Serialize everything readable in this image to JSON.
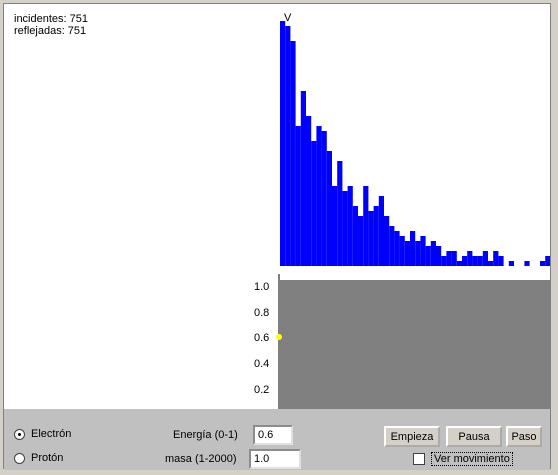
{
  "stats": {
    "incidentes": "incidentes: 751",
    "reflejadas": "reflejadas: 751"
  },
  "histogram": {
    "label": "V",
    "bar_color": "#0000ff",
    "values": [
      245,
      240,
      225,
      140,
      175,
      150,
      125,
      140,
      135,
      115,
      80,
      105,
      75,
      80,
      60,
      50,
      80,
      55,
      60,
      70,
      50,
      40,
      35,
      30,
      25,
      35,
      25,
      30,
      20,
      25,
      20,
      10,
      15,
      15,
      5,
      10,
      15,
      10,
      10,
      15,
      5,
      15,
      10,
      0,
      5,
      0,
      0,
      5,
      0,
      0,
      5,
      10
    ]
  },
  "potential": {
    "color": "#808080",
    "ticks": [
      "1.0",
      "0.8",
      "0.6",
      "0.4",
      "0.2"
    ],
    "particle_color": "#ffff00"
  },
  "controls": {
    "electron_label": "Electrón",
    "proton_label": "Protón",
    "energy_label": "Energía (0-1)",
    "energy_value": "0.6",
    "mass_label": "masa (1-2000)",
    "mass_value": "1.0",
    "start_label": "Empieza",
    "pause_label": "Pausa",
    "step_label": "Paso",
    "show_motion_label": "Ver movimiento"
  }
}
